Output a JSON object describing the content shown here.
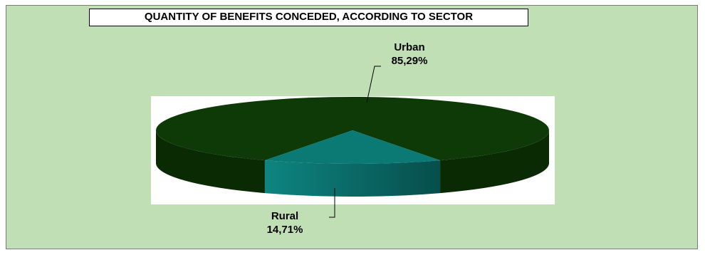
{
  "chart_data": {
    "type": "pie",
    "title": "QUANTITY OF BENEFITS CONCEDED, ACCORDING TO SECTOR",
    "slices": [
      {
        "name": "Urban",
        "value": 85.29,
        "label": "85,29%",
        "color": "#0d3a06"
      },
      {
        "name": "Rural",
        "value": 14.71,
        "label": "14,71%",
        "color": "#0b7a75"
      }
    ],
    "legend": "none",
    "style": "3d-pie"
  },
  "colors": {
    "background": "#c0dfb5",
    "urban_top": "#0d3a06",
    "urban_side": "#0a2a04",
    "rural_top": "#0b7a75",
    "rural_side": "#096765"
  }
}
